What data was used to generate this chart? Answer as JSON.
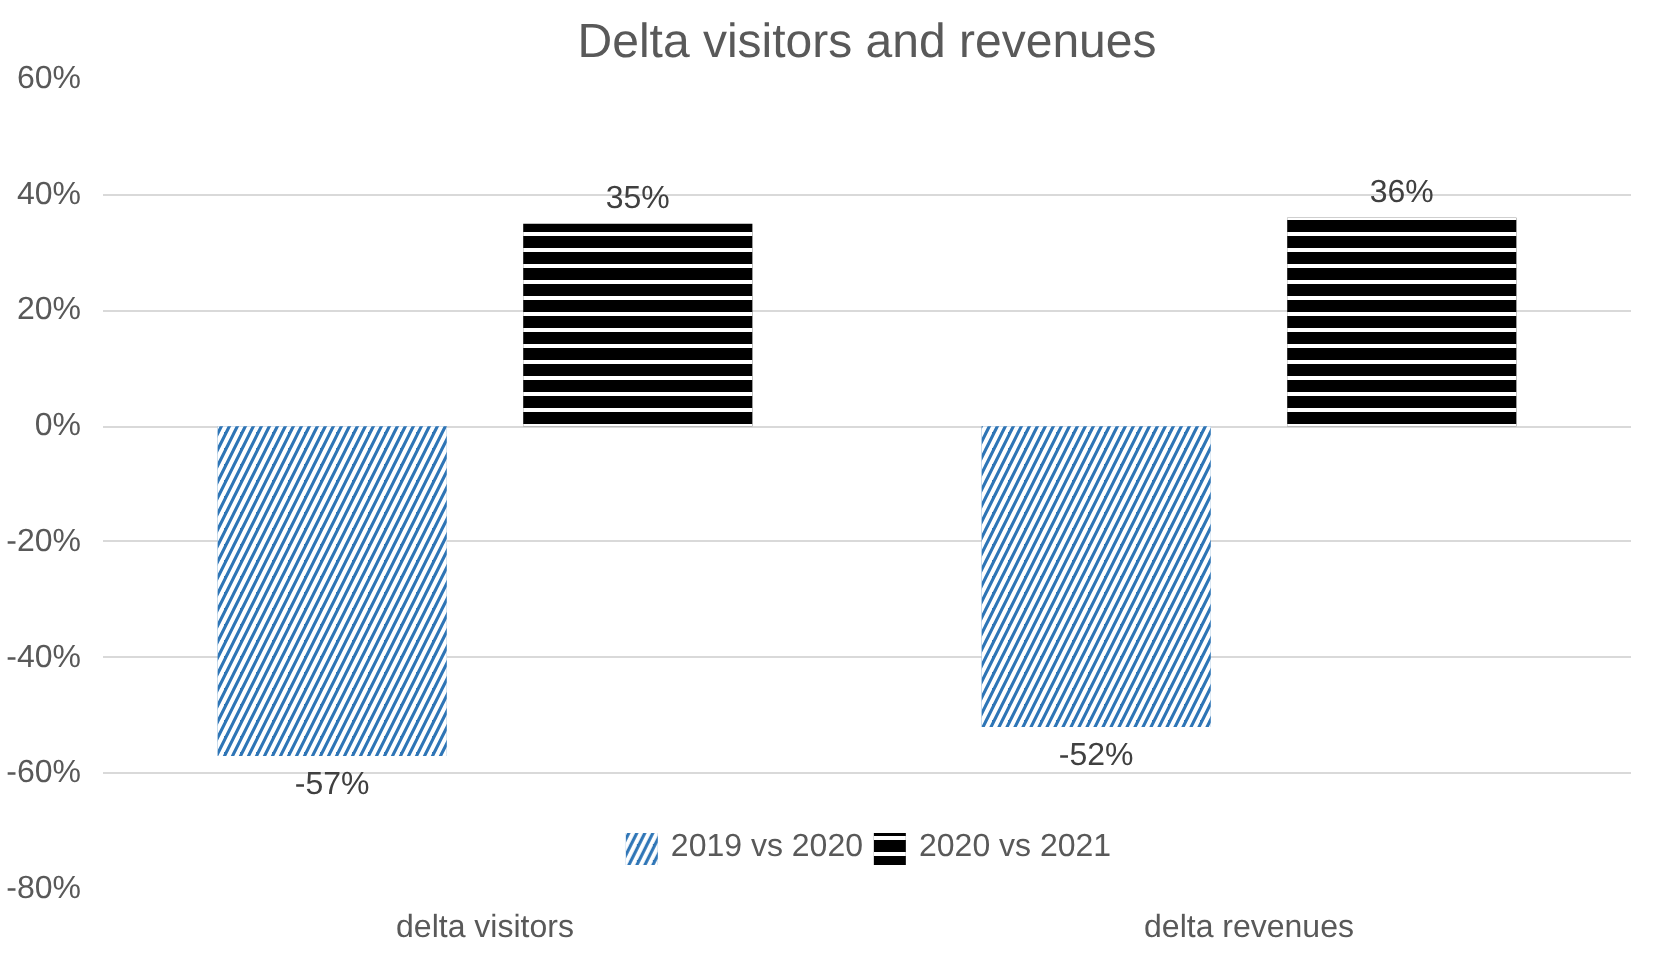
{
  "chart_data": {
    "type": "bar",
    "title": "Delta visitors and revenues",
    "categories": [
      "delta visitors",
      "delta revenues"
    ],
    "series": [
      {
        "name": "2019 vs 2020",
        "color": "#2e75b6",
        "values": [
          -57,
          -52
        ],
        "value_labels": [
          "-57%",
          "-52%"
        ]
      },
      {
        "name": "2020 vs 2021",
        "color": "#000000",
        "values": [
          35,
          36
        ],
        "value_labels": [
          "35%",
          "36%"
        ]
      }
    ],
    "ylim": [
      -80,
      60
    ],
    "yticks": [
      {
        "value": -80,
        "label": "-80%"
      },
      {
        "value": -60,
        "label": "-60%"
      },
      {
        "value": -40,
        "label": "-40%"
      },
      {
        "value": -20,
        "label": "-20%"
      },
      {
        "value": 0,
        "label": "0%"
      },
      {
        "value": 20,
        "label": "20%"
      },
      {
        "value": 40,
        "label": "40%"
      },
      {
        "value": 60,
        "label": "60%"
      }
    ],
    "grid": "y",
    "legend": "bottom"
  }
}
